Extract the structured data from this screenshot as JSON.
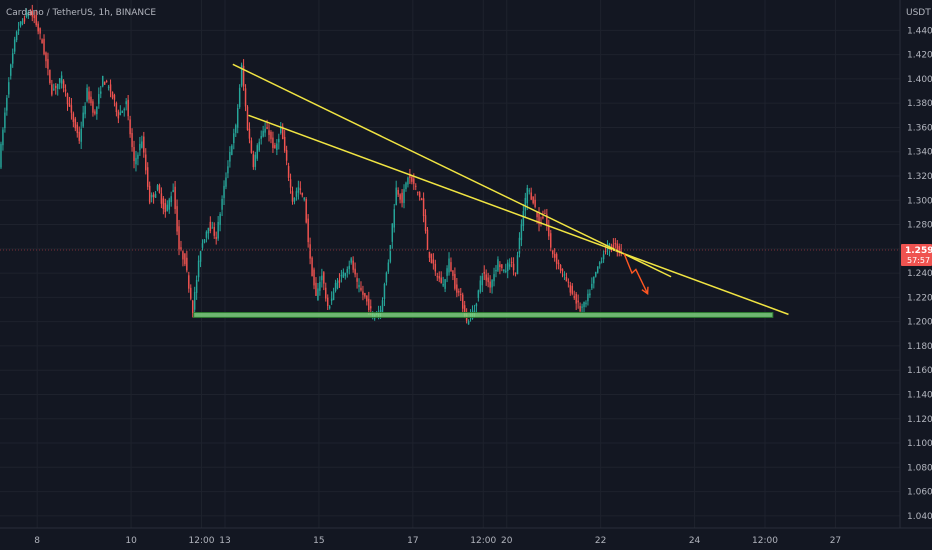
{
  "title": "Cardano / TetherUS, 1h, BINANCE",
  "currency": "USDT",
  "last_price": "1.259",
  "countdown": "57:57",
  "colors": {
    "background": "#131722",
    "grid": "#1e222d",
    "up": "#26a69a",
    "down": "#ef5350",
    "trendline": "#f0e442",
    "support_fill": "#7fd47f",
    "support_border": "#2e7d32",
    "arrow": "#ff5722",
    "price_label": "#ef5350",
    "price_line": "#7a2f36"
  },
  "chart_data": {
    "type": "candlestick",
    "ylim": [
      1.03,
      1.465
    ],
    "y_ticks": [
      1.04,
      1.06,
      1.08,
      1.1,
      1.12,
      1.14,
      1.16,
      1.18,
      1.2,
      1.22,
      1.24,
      1.26,
      1.28,
      1.3,
      1.32,
      1.34,
      1.36,
      1.38,
      1.4,
      1.42,
      1.44
    ],
    "y_tick_labels": [
      "1.040",
      "1.060",
      "1.080",
      "1.100",
      "1.120",
      "1.140",
      "1.160",
      "1.180",
      "1.200",
      "1.220",
      "1.240",
      "1.260",
      "1.280",
      "1.300",
      "1.320",
      "1.340",
      "1.360",
      "1.380",
      "1.400",
      "1.420",
      "1.440"
    ],
    "x_range_hours": [
      -163,
      297
    ],
    "x_ticks": [
      {
        "h": -144,
        "label": "8"
      },
      {
        "h": -96,
        "label": "10"
      },
      {
        "h": -60,
        "label": "12:00"
      },
      {
        "h": -48,
        "label": "13"
      },
      {
        "h": 0,
        "label": "15"
      },
      {
        "h": 48,
        "label": "17"
      },
      {
        "h": 84,
        "label": "12:00"
      },
      {
        "h": 96,
        "label": "20"
      },
      {
        "h": 144,
        "label": "22"
      },
      {
        "h": 192,
        "label": "24"
      },
      {
        "h": 228,
        "label": "12:00"
      },
      {
        "h": 264,
        "label": "27"
      }
    ],
    "price_path": [
      [
        -163,
        1.33
      ],
      [
        -158,
        1.4
      ],
      [
        -154,
        1.44
      ],
      [
        -148,
        1.455
      ],
      [
        -145,
        1.45
      ],
      [
        -141,
        1.43
      ],
      [
        -136,
        1.39
      ],
      [
        -131,
        1.4
      ],
      [
        -126,
        1.37
      ],
      [
        -122,
        1.35
      ],
      [
        -118,
        1.39
      ],
      [
        -114,
        1.37
      ],
      [
        -110,
        1.4
      ],
      [
        -106,
        1.39
      ],
      [
        -102,
        1.37
      ],
      [
        -98,
        1.38
      ],
      [
        -94,
        1.33
      ],
      [
        -90,
        1.35
      ],
      [
        -86,
        1.3
      ],
      [
        -82,
        1.31
      ],
      [
        -78,
        1.29
      ],
      [
        -74,
        1.31
      ],
      [
        -71,
        1.26
      ],
      [
        -68,
        1.25
      ],
      [
        -64,
        1.21
      ],
      [
        -60,
        1.26
      ],
      [
        -56,
        1.28
      ],
      [
        -52,
        1.27
      ],
      [
        -48,
        1.31
      ],
      [
        -45,
        1.34
      ],
      [
        -42,
        1.36
      ],
      [
        -39,
        1.41
      ],
      [
        -36,
        1.36
      ],
      [
        -33,
        1.33
      ],
      [
        -30,
        1.35
      ],
      [
        -26,
        1.36
      ],
      [
        -22,
        1.34
      ],
      [
        -19,
        1.36
      ],
      [
        -16,
        1.33
      ],
      [
        -13,
        1.3
      ],
      [
        -10,
        1.31
      ],
      [
        -7,
        1.3
      ],
      [
        -4,
        1.25
      ],
      [
        -1,
        1.22
      ],
      [
        2,
        1.24
      ],
      [
        5,
        1.21
      ],
      [
        9,
        1.23
      ],
      [
        13,
        1.24
      ],
      [
        17,
        1.25
      ],
      [
        20,
        1.23
      ],
      [
        24,
        1.22
      ],
      [
        28,
        1.205
      ],
      [
        32,
        1.21
      ],
      [
        36,
        1.25
      ],
      [
        40,
        1.31
      ],
      [
        43,
        1.3
      ],
      [
        46,
        1.32
      ],
      [
        50,
        1.31
      ],
      [
        53,
        1.3
      ],
      [
        56,
        1.26
      ],
      [
        60,
        1.24
      ],
      [
        64,
        1.23
      ],
      [
        67,
        1.25
      ],
      [
        70,
        1.23
      ],
      [
        73,
        1.22
      ],
      [
        76,
        1.2
      ],
      [
        80,
        1.21
      ],
      [
        84,
        1.24
      ],
      [
        88,
        1.23
      ],
      [
        92,
        1.25
      ],
      [
        95,
        1.24
      ],
      [
        98,
        1.25
      ],
      [
        101,
        1.24
      ],
      [
        104,
        1.28
      ],
      [
        107,
        1.31
      ],
      [
        110,
        1.3
      ],
      [
        113,
        1.28
      ],
      [
        116,
        1.29
      ],
      [
        119,
        1.26
      ],
      [
        122,
        1.25
      ],
      [
        125,
        1.24
      ],
      [
        128,
        1.23
      ],
      [
        131,
        1.22
      ],
      [
        134,
        1.21
      ],
      [
        137,
        1.215
      ],
      [
        140,
        1.23
      ],
      [
        143,
        1.245
      ],
      [
        147,
        1.26
      ],
      [
        151,
        1.263
      ],
      [
        155,
        1.259
      ]
    ],
    "resistance_lines": [
      {
        "start": {
          "h": -44,
          "p": 1.412
        },
        "end": {
          "h": 180,
          "p": 1.237
        }
      },
      {
        "start": {
          "h": -36,
          "p": 1.37
        },
        "end": {
          "h": 240,
          "p": 1.206
        }
      }
    ],
    "support_zone": {
      "h_start": -64,
      "h_end": 232,
      "p_low": 1.2035,
      "p_high": 1.2075
    },
    "forecast_arrow": [
      [
        156,
        1.256
      ],
      [
        160,
        1.24
      ],
      [
        162,
        1.243
      ],
      [
        168,
        1.223
      ]
    ],
    "current_price": 1.259
  }
}
